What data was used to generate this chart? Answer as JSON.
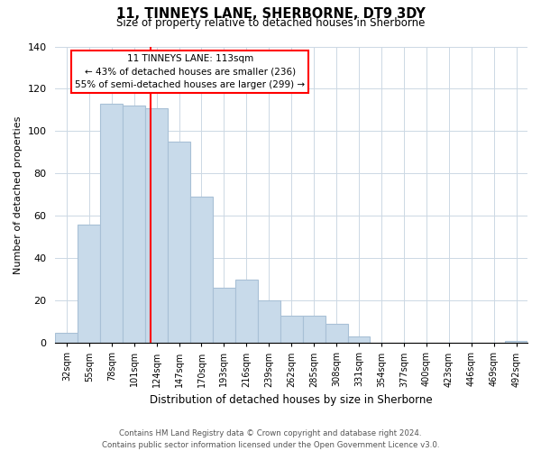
{
  "title": "11, TINNEYS LANE, SHERBORNE, DT9 3DY",
  "subtitle": "Size of property relative to detached houses in Sherborne",
  "xlabel": "Distribution of detached houses by size in Sherborne",
  "ylabel": "Number of detached properties",
  "bar_color": "#c8daea",
  "bar_edge_color": "#a8c0d6",
  "categories": [
    "32sqm",
    "55sqm",
    "78sqm",
    "101sqm",
    "124sqm",
    "147sqm",
    "170sqm",
    "193sqm",
    "216sqm",
    "239sqm",
    "262sqm",
    "285sqm",
    "308sqm",
    "331sqm",
    "354sqm",
    "377sqm",
    "400sqm",
    "423sqm",
    "446sqm",
    "469sqm",
    "492sqm"
  ],
  "values": [
    5,
    56,
    113,
    112,
    111,
    95,
    69,
    26,
    30,
    20,
    13,
    13,
    9,
    3,
    0,
    0,
    0,
    0,
    0,
    0,
    1
  ],
  "ylim": [
    0,
    140
  ],
  "yticks": [
    0,
    20,
    40,
    60,
    80,
    100,
    120,
    140
  ],
  "redline_x": 3.72,
  "annotation_title": "11 TINNEYS LANE: 113sqm",
  "annotation_line1": "← 43% of detached houses are smaller (236)",
  "annotation_line2": "55% of semi-detached houses are larger (299) →",
  "footer_line1": "Contains HM Land Registry data © Crown copyright and database right 2024.",
  "footer_line2": "Contains public sector information licensed under the Open Government Licence v3.0.",
  "background_color": "#ffffff"
}
